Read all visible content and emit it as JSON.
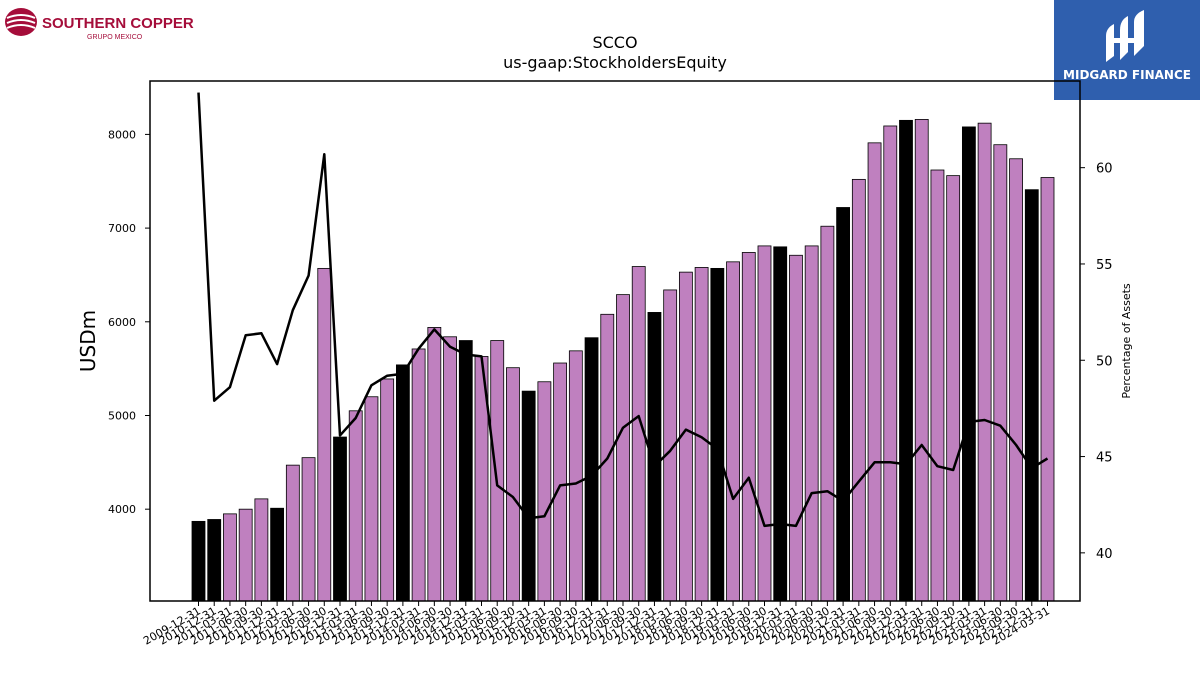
{
  "logos": {
    "company": {
      "line1": "SOUTHERN COPPER",
      "line2": "GRUPO MEXICO",
      "color": "#a50d3a"
    },
    "brand": {
      "name": "MIDGARD FINANCE",
      "bg_color": "#2f5fae"
    }
  },
  "chart_data": {
    "type": "bar",
    "title": "SCCO",
    "subtitle": "us-gaap:StockholdersEquity",
    "ylabel": "USDm",
    "y2label": "Percentage of Assets",
    "ylim": [
      3020,
      8570
    ],
    "y2lim": [
      37.5,
      64.5
    ],
    "yticks": [
      4000,
      5000,
      6000,
      7000,
      8000
    ],
    "y2ticks": [
      40,
      45,
      50,
      55,
      60
    ],
    "grid": false,
    "colors": {
      "quarter_bar": "#bf80bf",
      "annual_bar": "#000000",
      "line": "#000000"
    },
    "categories": [
      "2009-12-31",
      "2010-12-31",
      "2011-03-31",
      "2011-06-30",
      "2011-09-30",
      "2011-12-31",
      "2012-03-31",
      "2012-06-30",
      "2012-09-30",
      "2012-12-31",
      "2013-03-31",
      "2013-06-30",
      "2013-09-30",
      "2013-12-31",
      "2014-03-31",
      "2014-06-30",
      "2014-09-30",
      "2014-12-31",
      "2015-03-31",
      "2015-06-30",
      "2015-09-30",
      "2015-12-31",
      "2016-03-31",
      "2016-06-30",
      "2016-09-30",
      "2016-12-31",
      "2017-03-31",
      "2017-06-30",
      "2017-09-30",
      "2017-12-31",
      "2018-03-31",
      "2018-06-30",
      "2018-09-30",
      "2018-12-31",
      "2019-03-31",
      "2019-06-30",
      "2019-09-30",
      "2019-12-31",
      "2020-03-31",
      "2020-06-30",
      "2020-09-30",
      "2020-12-31",
      "2021-03-31",
      "2021-06-30",
      "2021-09-30",
      "2021-12-31",
      "2022-03-31",
      "2022-06-30",
      "2022-09-30",
      "2022-12-31",
      "2023-03-31",
      "2023-06-30",
      "2023-09-30",
      "2023-12-31",
      "2024-03-31"
    ],
    "series": [
      {
        "values": [
          3870,
          3890,
          3950,
          4000,
          4110,
          4010,
          4470,
          4550,
          6570,
          4770,
          5050,
          5200,
          5390,
          5540,
          5710,
          5940,
          5840,
          5800,
          5630,
          5800,
          5510,
          5260,
          5360,
          5560,
          5690,
          5830,
          6080,
          6290,
          6590,
          6100,
          6340,
          6530,
          6580,
          6570,
          6640,
          6740,
          6810,
          6800,
          6710,
          6810,
          7020,
          7220,
          7520,
          7910,
          8090,
          8150,
          8160,
          7620,
          7560,
          8080,
          8120,
          7890,
          7740,
          7410,
          7540
        ],
        "annual": [
          true,
          true,
          false,
          false,
          false,
          true,
          false,
          false,
          false,
          true,
          false,
          false,
          false,
          true,
          false,
          false,
          false,
          true,
          false,
          false,
          false,
          true,
          false,
          false,
          false,
          true,
          false,
          false,
          false,
          true,
          false,
          false,
          false,
          true,
          false,
          false,
          false,
          true,
          false,
          false,
          false,
          true,
          false,
          false,
          false,
          true,
          false,
          false,
          false,
          true,
          false,
          false,
          false,
          true,
          false
        ]
      },
      {
        "axis": "right",
        "values": [
          63.9,
          47.9,
          48.6,
          51.3,
          51.4,
          49.8,
          52.6,
          54.4,
          60.7,
          46.1,
          47.0,
          48.7,
          49.2,
          49.3,
          50.6,
          51.6,
          50.7,
          50.3,
          50.2,
          43.5,
          42.9,
          41.8,
          41.9,
          43.5,
          43.6,
          44.0,
          44.9,
          46.5,
          47.1,
          44.5,
          45.3,
          46.4,
          46.0,
          45.4,
          42.8,
          43.9,
          41.4,
          41.5,
          41.4,
          43.1,
          43.2,
          42.7,
          43.7,
          44.7,
          44.7,
          44.6,
          45.6,
          44.5,
          44.3,
          46.8,
          46.9,
          46.6,
          45.6,
          44.4,
          44.9
        ]
      }
    ]
  }
}
